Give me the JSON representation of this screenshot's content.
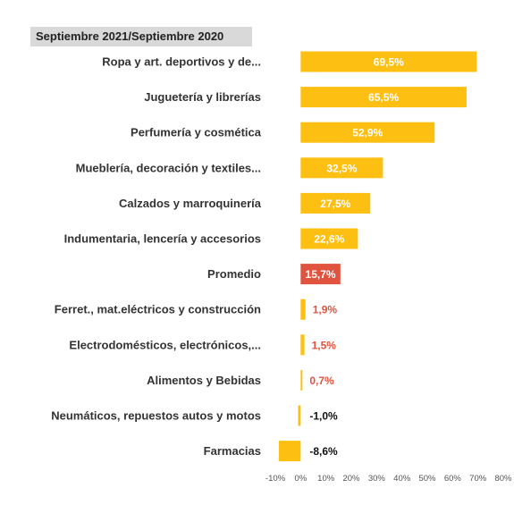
{
  "colors": {
    "bar_default": "#fdbf12",
    "bar_highlight": "#e0533f",
    "label_inside": "#ffffff",
    "label_outside_positive": "#e0533f",
    "label_outside_negative": "#111111"
  },
  "chart_data": {
    "type": "bar",
    "orientation": "horizontal",
    "title": "Septiembre 2021/Septiembre 2020",
    "categories": [
      "Ropa y art. deportivos y de...",
      "Juguetería y librerías",
      "Perfumería y cosmética",
      "Mueblería, decoración y textiles...",
      "Calzados y marroquinería",
      "Indumentaria, lencería y accesorios",
      "Promedio",
      "Ferret., mat.eléctricos y construcción",
      "Electrodomésticos, electrónicos,...",
      "Alimentos y Bebidas",
      "Neumáticos, repuestos autos y motos",
      "Farmacias"
    ],
    "values": [
      69.5,
      65.5,
      52.9,
      32.5,
      27.5,
      22.6,
      15.7,
      1.9,
      1.5,
      0.7,
      -1.0,
      -8.6
    ],
    "value_labels": [
      "69,5%",
      "65,5%",
      "52,9%",
      "32,5%",
      "27,5%",
      "22,6%",
      "15,7%",
      "1,9%",
      "1,5%",
      "0,7%",
      "-1,0%",
      "-8,6%"
    ],
    "highlight_index": 6,
    "xlim": [
      -10,
      80
    ],
    "x_ticks": [
      "-10%",
      "0%",
      "10%",
      "20%",
      "30%",
      "40%",
      "50%",
      "60%",
      "70%",
      "80%"
    ],
    "xlabel": "",
    "ylabel": "",
    "grid": false,
    "legend": "none"
  }
}
